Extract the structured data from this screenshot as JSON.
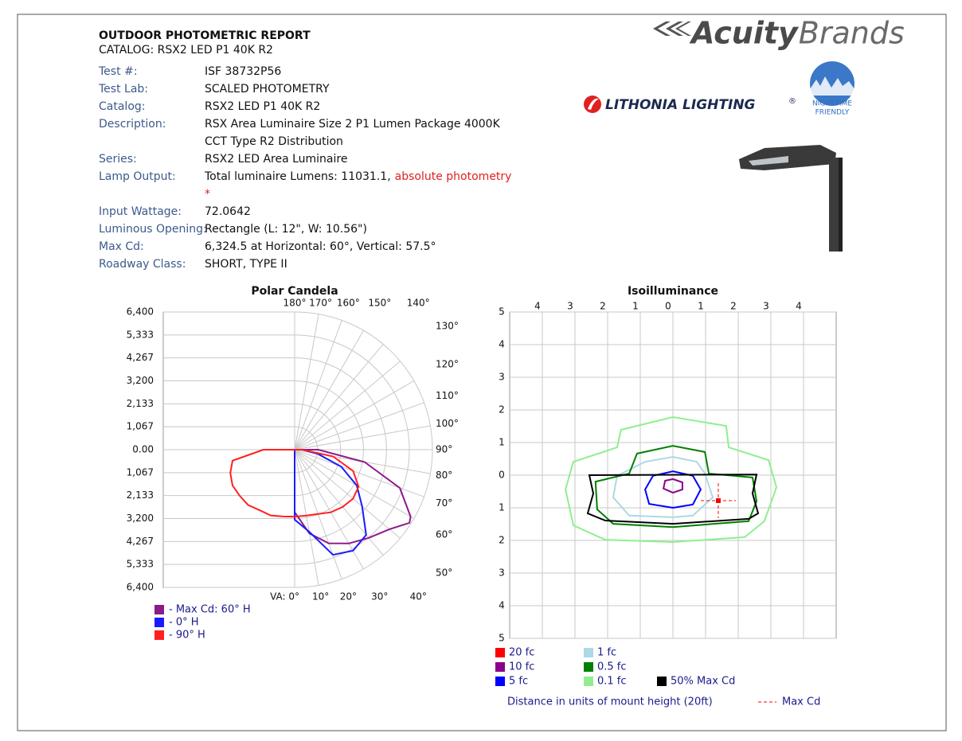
{
  "header": {
    "title": "OUTDOOR PHOTOMETRIC REPORT",
    "catalog": "CATALOG: RSX2 LED P1 40K R2"
  },
  "logos": {
    "brand_bold": "Acuity",
    "brand_light": "Brands",
    "lithonia": "LITHONIA LIGHTING",
    "registered": "®",
    "badge_lines": [
      "NIGHTTIME",
      "FRIENDLY"
    ]
  },
  "info": [
    {
      "label": "Test #:",
      "lines": [
        "ISF 38732P56"
      ]
    },
    {
      "label": "Test Lab:",
      "lines": [
        "SCALED PHOTOMETRY"
      ]
    },
    {
      "label": "Catalog:",
      "lines": [
        "RSX2 LED P1 40K R2"
      ]
    },
    {
      "label": "Description:",
      "lines": [
        "RSX Area Luminaire Size 2 P1 Lumen Package 4000K",
        "CCT Type R2 Distribution"
      ]
    },
    {
      "label": "Series:",
      "lines": [
        "RSX2 LED Area Luminaire"
      ]
    },
    {
      "label": "Lamp Output:",
      "lines": [
        "Total luminaire Lumens: 11031.1,"
      ],
      "note_lines": [
        "absolute photometry",
        "*"
      ]
    },
    {
      "label": "Input Wattage:",
      "lines": [
        "72.0642"
      ]
    },
    {
      "label": "Luminous Opening:",
      "lines": [
        "Rectangle (L: 12\", W: 10.56\")"
      ]
    },
    {
      "label": "Max Cd:",
      "lines": [
        "6,324.5 at Horizontal: 60°, Vertical: 57.5°"
      ]
    },
    {
      "label": "Roadway Class:",
      "lines": [
        "SHORT, TYPE II"
      ]
    }
  ],
  "polar": {
    "type": "polar",
    "title": "Polar Candela",
    "rlim": [
      0,
      6400
    ],
    "yticks_upper": [
      {
        "value": 6400,
        "label": "6,400"
      },
      {
        "value": 5333,
        "label": "5,333"
      },
      {
        "value": 4267,
        "label": "4,267"
      },
      {
        "value": 3200,
        "label": "3,200"
      },
      {
        "value": 2133,
        "label": "2,133"
      },
      {
        "value": 1067,
        "label": "1,067"
      },
      {
        "value": 0,
        "label": "0.00"
      }
    ],
    "yticks_lower": [
      {
        "value": 1067,
        "label": "1,067"
      },
      {
        "value": 2133,
        "label": "2,133"
      },
      {
        "value": 3200,
        "label": "3,200"
      },
      {
        "value": 4267,
        "label": "4,267"
      },
      {
        "value": 5333,
        "label": "5,333"
      },
      {
        "value": 6400,
        "label": "6,400"
      }
    ],
    "angle_ticks": [
      {
        "value": 180,
        "label": "180°"
      },
      {
        "value": 170,
        "label": "170°"
      },
      {
        "value": 160,
        "label": "160°"
      },
      {
        "value": 150,
        "label": "150°"
      },
      {
        "value": 140,
        "label": "140°"
      },
      {
        "value": 130,
        "label": "130°"
      },
      {
        "value": 120,
        "label": "120°"
      },
      {
        "value": 110,
        "label": "110°"
      },
      {
        "value": 100,
        "label": "100°"
      },
      {
        "value": 90,
        "label": "90°"
      },
      {
        "value": 80,
        "label": "80°"
      },
      {
        "value": 70,
        "label": "70°"
      },
      {
        "value": 60,
        "label": "60°"
      },
      {
        "value": 50,
        "label": "50°"
      },
      {
        "value": 40,
        "label": "40°"
      },
      {
        "value": 30,
        "label": "30°"
      },
      {
        "value": 20,
        "label": "20°"
      },
      {
        "value": 10,
        "label": "10°"
      },
      {
        "value": 0,
        "label": "VA: 0°"
      }
    ],
    "series": [
      {
        "name": "- Max Cd: 60° H",
        "color": "#8b1a8b",
        "angles": [
          0,
          10,
          20,
          30,
          40,
          50,
          57.5,
          60,
          70,
          80,
          90,
          180
        ],
        "values": [
          2900,
          3950,
          4630,
          5030,
          5350,
          5750,
          6324.5,
          6220,
          5200,
          3300,
          1100,
          0
        ]
      },
      {
        "name": "- 0° H",
        "color": "#1a1aff",
        "angles": [
          0,
          10,
          20,
          30,
          40,
          50,
          60,
          70,
          80,
          90,
          180
        ],
        "values": [
          3250,
          3870,
          5200,
          5420,
          5170,
          4090,
          3330,
          2300,
          1080,
          360,
          0
        ]
      },
      {
        "name": "- 90° H",
        "color": "#ff2020",
        "angles": [
          -90,
          -80,
          -70,
          -60,
          -50,
          -40,
          -30,
          -20,
          -10,
          0,
          10,
          20,
          30,
          40,
          50,
          60,
          70,
          80,
          90
        ],
        "values": [
          1450,
          2930,
          3180,
          3330,
          3330,
          3360,
          3250,
          3250,
          3150,
          3110,
          3110,
          3180,
          3360,
          3470,
          3540,
          3430,
          2890,
          1810,
          360
        ]
      }
    ]
  },
  "isoilluminance": {
    "type": "contour",
    "title": "Isoilluminance",
    "xlim": [
      -5,
      5
    ],
    "ylim": [
      -5,
      5
    ],
    "xticks": [
      {
        "value": -4,
        "label": "4"
      },
      {
        "value": -3,
        "label": "3"
      },
      {
        "value": -2,
        "label": "2"
      },
      {
        "value": -1,
        "label": "1"
      },
      0,
      1,
      2,
      3,
      4
    ],
    "yticks": [
      5,
      4,
      3,
      2,
      1,
      0,
      {
        "value": -1,
        "label": "1"
      },
      {
        "value": -2,
        "label": "2"
      },
      {
        "value": -3,
        "label": "3"
      },
      {
        "value": -4,
        "label": "4"
      },
      {
        "value": -5,
        "label": "5"
      }
    ],
    "series": [
      {
        "name": "20 fc",
        "color": "#ff0000"
      },
      {
        "name": "10 fc",
        "color": "#8b008b",
        "x": [
          -0.24,
          0,
          0.29,
          0.29,
          0,
          -0.29
        ],
        "y": [
          -0.17,
          -0.12,
          -0.22,
          -0.44,
          -0.54,
          -0.41
        ]
      },
      {
        "name": "5 fc",
        "color": "#0000ff",
        "x": [
          -0.61,
          0,
          0.61,
          0.85,
          0.61,
          0,
          -0.73,
          -0.85
        ],
        "y": [
          -0.02,
          0.12,
          -0.02,
          -0.44,
          -0.9,
          -1,
          -0.88,
          -0.44
        ]
      },
      {
        "name": "1 fc",
        "color": "#add8e6",
        "x": [
          -0.85,
          0,
          0.73,
          0.98,
          1.22,
          0.61,
          0,
          -1.34,
          -1.83,
          -1.71
        ],
        "y": [
          0.41,
          0.56,
          0.41,
          0.05,
          -0.68,
          -1.24,
          -1.29,
          -1.24,
          -0.68,
          -0.02
        ]
      },
      {
        "name": "0.5 fc",
        "color": "#008000",
        "x": [
          -1.1,
          0,
          0.98,
          1.1,
          2.44,
          2.56,
          2.32,
          0,
          -1.83,
          -2.32,
          -2.37,
          -1.34
        ],
        "y": [
          0.66,
          0.9,
          0.71,
          0.05,
          -0.07,
          -0.8,
          -1.41,
          -1.59,
          -1.49,
          -1.05,
          -0.2,
          0.05
        ]
      },
      {
        "name": "0.1 fc",
        "color": "#90ee90",
        "x": [
          -1.59,
          0,
          1.63,
          1.71,
          2.93,
          3.17,
          2.8,
          2.2,
          0,
          -2.07,
          -3.05,
          -3.29,
          -3.05,
          -1.71
        ],
        "y": [
          1.39,
          1.78,
          1.51,
          0.85,
          0.46,
          -0.37,
          -1.41,
          -1.9,
          -2.05,
          -1.98,
          -1.54,
          -0.44,
          0.41,
          0.85
        ]
      },
      {
        "name": "50% Max Cd",
        "color": "#000000",
        "x": [
          -2.56,
          2.56,
          2.44,
          2.61,
          2.32,
          0,
          -2.07,
          -2.61,
          -2.44
        ],
        "y": [
          0,
          0.02,
          -0.56,
          -1.17,
          -1.34,
          -1.49,
          -1.39,
          -1.17,
          -0.56
        ]
      }
    ],
    "max_cd": {
      "name": "Max Cd",
      "color": "#ff0000",
      "x": 1.39,
      "y": -0.78
    },
    "caption": "Distance in units of mount height (20ft)"
  }
}
